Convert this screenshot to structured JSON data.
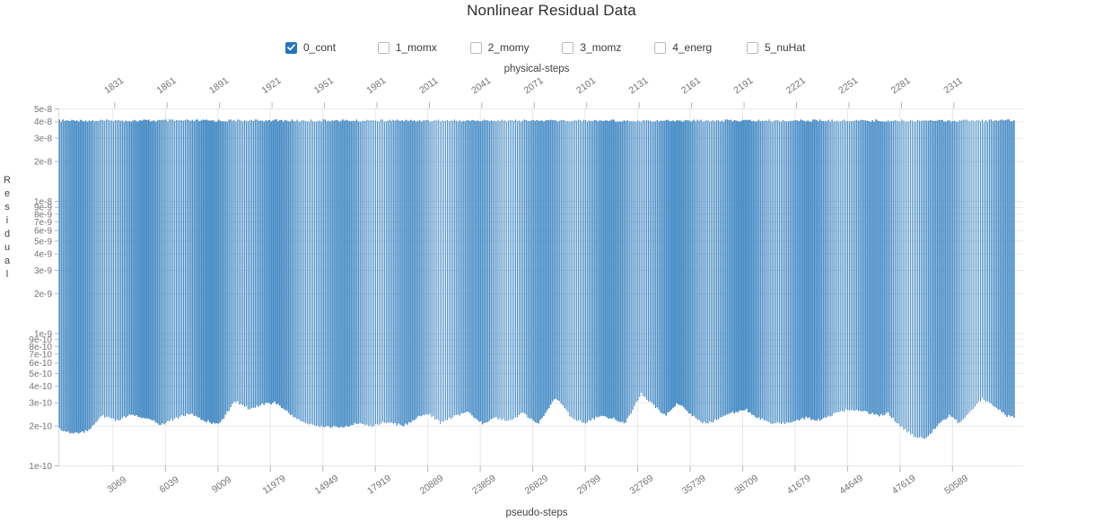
{
  "title": "Nonlinear Residual Data",
  "legend": {
    "items": [
      {
        "label": "0_cont",
        "checked": true
      },
      {
        "label": "1_momx",
        "checked": false
      },
      {
        "label": "2_momy",
        "checked": false
      },
      {
        "label": "3_momz",
        "checked": false
      },
      {
        "label": "4_energ",
        "checked": false
      },
      {
        "label": "5_nuHat",
        "checked": false
      }
    ]
  },
  "axes": {
    "top": {
      "label": "physical-steps"
    },
    "bottom": {
      "label": "pseudo-steps"
    },
    "y": {
      "label": "Residual"
    }
  },
  "chart_data": {
    "type": "area",
    "series_name": "0_cont",
    "title": "Nonlinear Residual Data",
    "xlabel_bottom": "pseudo-steps",
    "xlabel_top": "physical-steps",
    "ylabel": "Residual",
    "y_scale": "log",
    "y_range": [
      1e-10,
      5e-08
    ],
    "y_tick_labels": [
      "5e-8",
      "4e-8",
      "3e-8",
      "2e-8",
      "1e-8",
      "9e-9",
      "8e-9",
      "7e-9",
      "6e-9",
      "5e-9",
      "4e-9",
      "3e-9",
      "2e-9",
      "1e-9",
      "9e-10",
      "8e-10",
      "7e-10",
      "6e-10",
      "5e-10",
      "4e-10",
      "3e-10",
      "2e-10",
      "1e-10"
    ],
    "x_bottom_ticks": [
      3069,
      6039,
      9009,
      11979,
      14949,
      17919,
      20889,
      23859,
      26829,
      29799,
      32769,
      35739,
      38709,
      41679,
      44649,
      47619,
      50589
    ],
    "x_bottom_range": [
      0,
      54130
    ],
    "x_top_ticks": [
      1831,
      1861,
      1891,
      1921,
      1951,
      1981,
      2011,
      2041,
      2071,
      2101,
      2131,
      2161,
      2191,
      2221,
      2251,
      2281,
      2311
    ],
    "x_top_range": [
      1799,
      2346
    ],
    "pseudo_steps_per_physical_step": 99,
    "physical_step_count": 547,
    "peak_residual_per_step": 4e-08,
    "grid": true,
    "legend_position": "top",
    "min_envelope": [
      [
        0,
        1.9e-10
      ],
      [
        900,
        1.75e-10
      ],
      [
        1700,
        1.85e-10
      ],
      [
        2500,
        2.4e-10
      ],
      [
        3300,
        2.2e-10
      ],
      [
        4100,
        2.45e-10
      ],
      [
        4950,
        2.3e-10
      ],
      [
        5800,
        2.05e-10
      ],
      [
        6700,
        2.3e-10
      ],
      [
        7450,
        2.5e-10
      ],
      [
        8250,
        2.2e-10
      ],
      [
        9100,
        2.05e-10
      ],
      [
        10000,
        3.1e-10
      ],
      [
        10800,
        2.7e-10
      ],
      [
        11500,
        2.9e-10
      ],
      [
        12270,
        3e-10
      ],
      [
        13030,
        2.5e-10
      ],
      [
        13950,
        2.1e-10
      ],
      [
        14860,
        2e-10
      ],
      [
        15880,
        1.95e-10
      ],
      [
        16890,
        2.1e-10
      ],
      [
        17750,
        2e-10
      ],
      [
        18620,
        2.15e-10
      ],
      [
        19530,
        2e-10
      ],
      [
        20300,
        2.3e-10
      ],
      [
        20960,
        2.5e-10
      ],
      [
        21670,
        2.1e-10
      ],
      [
        22480,
        2.4e-10
      ],
      [
        23190,
        2.55e-10
      ],
      [
        24000,
        2.1e-10
      ],
      [
        24720,
        2.3e-10
      ],
      [
        25530,
        2.2e-10
      ],
      [
        26290,
        2.5e-10
      ],
      [
        27150,
        2.1e-10
      ],
      [
        28170,
        3.3e-10
      ],
      [
        29080,
        2.3e-10
      ],
      [
        29800,
        2.1e-10
      ],
      [
        30610,
        2.4e-10
      ],
      [
        31370,
        2.3e-10
      ],
      [
        32080,
        2.1e-10
      ],
      [
        33000,
        3.5e-10
      ],
      [
        33760,
        2.8e-10
      ],
      [
        34370,
        2.4e-10
      ],
      [
        35030,
        3e-10
      ],
      [
        35690,
        2.5e-10
      ],
      [
        36450,
        2.1e-10
      ],
      [
        37210,
        2.2e-10
      ],
      [
        38080,
        2.5e-10
      ],
      [
        38840,
        2.7e-10
      ],
      [
        39600,
        2.3e-10
      ],
      [
        40460,
        2.1e-10
      ],
      [
        41380,
        2.1e-10
      ],
      [
        42290,
        2.3e-10
      ],
      [
        43160,
        2.2e-10
      ],
      [
        44020,
        2.5e-10
      ],
      [
        44830,
        2.7e-10
      ],
      [
        45590,
        2.6e-10
      ],
      [
        46360,
        2.4e-10
      ],
      [
        46960,
        2.5e-10
      ],
      [
        47730,
        1.95e-10
      ],
      [
        48490,
        1.65e-10
      ],
      [
        49150,
        1.6e-10
      ],
      [
        49810,
        2.1e-10
      ],
      [
        50420,
        2.4e-10
      ],
      [
        51030,
        2.1e-10
      ],
      [
        51640,
        2.6e-10
      ],
      [
        52300,
        3.2e-10
      ],
      [
        53060,
        2.8e-10
      ],
      [
        53670,
        2.4e-10
      ],
      [
        54130,
        2.3e-10
      ]
    ],
    "colors": {
      "series_fill": "#4a8ec6",
      "checked_checkbox": "#2675bc",
      "gridline": "#e7e7e7",
      "tick_label": "#737373",
      "axis_line": "#dcdcdc"
    }
  }
}
